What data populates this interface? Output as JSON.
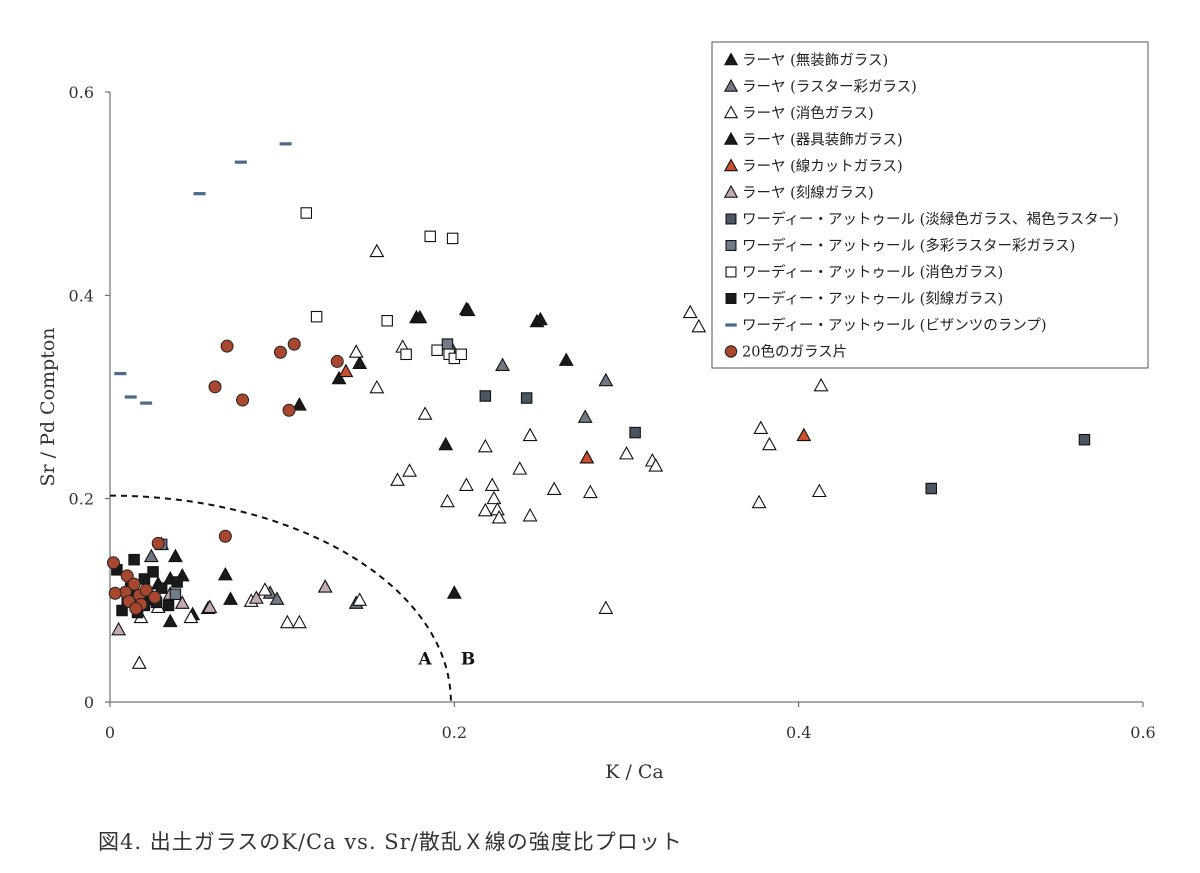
{
  "chart_data": {
    "type": "scatter",
    "xlabel": "K / Ca",
    "ylabel": "Sr / Pd Compton",
    "xlim": [
      0,
      0.6
    ],
    "ylim": [
      0,
      0.6
    ],
    "x_ticks": [
      0,
      0.2,
      0.4,
      0.6
    ],
    "x_tick_labels": [
      "0",
      "0.2",
      "0.4",
      "0.6"
    ],
    "y_ticks": [
      0,
      0.2,
      0.4,
      0.6
    ],
    "y_tick_labels": [
      "0",
      "0.2",
      "0.4",
      "0.6"
    ],
    "grid": false,
    "legend_position": "top-right",
    "annotations": [
      {
        "text": "A",
        "x": 0.183,
        "y": 0.04
      },
      {
        "text": "B",
        "x": 0.208,
        "y": 0.04
      }
    ],
    "boundary_curve": {
      "shape": "quarter-ellipse",
      "x_radius": 0.198,
      "y_radius": 0.203
    },
    "series": [
      {
        "name": "ラーヤ (無装飾ガラス)",
        "marker": "triangle",
        "color": "#1a1a1a",
        "points": [
          [
            0.178,
            0.378
          ],
          [
            0.207,
            0.386
          ],
          [
            0.248,
            0.374
          ],
          [
            0.265,
            0.336
          ],
          [
            0.145,
            0.333
          ],
          [
            0.133,
            0.318
          ],
          [
            0.11,
            0.292
          ],
          [
            0.195,
            0.253
          ],
          [
            0.067,
            0.125
          ],
          [
            0.038,
            0.143
          ],
          [
            0.042,
            0.124
          ],
          [
            0.035,
            0.121
          ],
          [
            0.028,
            0.116
          ],
          [
            0.025,
            0.101
          ],
          [
            0.018,
            0.1
          ],
          [
            0.035,
            0.079
          ],
          [
            0.07,
            0.101
          ],
          [
            0.2,
            0.107
          ],
          [
            0.048,
            0.086
          ],
          [
            0.013,
            0.108
          ]
        ]
      },
      {
        "name": "ラーヤ (ラスター彩ガラス)",
        "marker": "triangle",
        "color": "#6f7a86",
        "points": [
          [
            0.198,
            0.349
          ],
          [
            0.228,
            0.331
          ],
          [
            0.288,
            0.316
          ],
          [
            0.276,
            0.28
          ],
          [
            0.093,
            0.107
          ],
          [
            0.097,
            0.101
          ],
          [
            0.143,
            0.097
          ],
          [
            0.057,
            0.092
          ],
          [
            0.03,
            0.155
          ],
          [
            0.024,
            0.143
          ]
        ]
      },
      {
        "name": "ラーヤ (消色ガラス)",
        "marker": "triangle",
        "color": "#ffffff",
        "points": [
          [
            0.155,
            0.443
          ],
          [
            0.337,
            0.383
          ],
          [
            0.342,
            0.369
          ],
          [
            0.17,
            0.349
          ],
          [
            0.143,
            0.344
          ],
          [
            0.155,
            0.309
          ],
          [
            0.183,
            0.283
          ],
          [
            0.378,
            0.269
          ],
          [
            0.383,
            0.253
          ],
          [
            0.413,
            0.311
          ],
          [
            0.244,
            0.262
          ],
          [
            0.218,
            0.251
          ],
          [
            0.3,
            0.244
          ],
          [
            0.315,
            0.237
          ],
          [
            0.317,
            0.232
          ],
          [
            0.238,
            0.229
          ],
          [
            0.174,
            0.227
          ],
          [
            0.167,
            0.218
          ],
          [
            0.207,
            0.213
          ],
          [
            0.222,
            0.213
          ],
          [
            0.258,
            0.209
          ],
          [
            0.279,
            0.206
          ],
          [
            0.223,
            0.2
          ],
          [
            0.196,
            0.197
          ],
          [
            0.225,
            0.189
          ],
          [
            0.218,
            0.188
          ],
          [
            0.226,
            0.181
          ],
          [
            0.244,
            0.183
          ],
          [
            0.377,
            0.196
          ],
          [
            0.412,
            0.207
          ],
          [
            0.288,
            0.092
          ],
          [
            0.145,
            0.1
          ],
          [
            0.103,
            0.078
          ],
          [
            0.11,
            0.078
          ],
          [
            0.082,
            0.099
          ],
          [
            0.047,
            0.083
          ],
          [
            0.017,
            0.038
          ],
          [
            0.018,
            0.083
          ],
          [
            0.028,
            0.093
          ],
          [
            0.09,
            0.11
          ]
        ]
      },
      {
        "name": "ラーヤ (器具装飾ガラス)",
        "marker": "triangle",
        "color": "#1a1a1a",
        "points": [
          [
            0.25,
            0.376
          ],
          [
            0.208,
            0.385
          ],
          [
            0.18,
            0.378
          ]
        ]
      },
      {
        "name": "ラーヤ (線カットガラス)",
        "marker": "triangle",
        "color": "#c8502e",
        "points": [
          [
            0.137,
            0.325
          ],
          [
            0.277,
            0.24
          ],
          [
            0.403,
            0.262
          ]
        ]
      },
      {
        "name": "ラーヤ (刻線ガラス)",
        "marker": "triangle",
        "color": "#c3a9b5",
        "points": [
          [
            0.125,
            0.113
          ],
          [
            0.005,
            0.071
          ],
          [
            0.085,
            0.102
          ],
          [
            0.035,
            0.106
          ],
          [
            0.022,
            0.108
          ],
          [
            0.042,
            0.097
          ],
          [
            0.058,
            0.093
          ]
        ]
      },
      {
        "name": "ワーディー・アットゥール (淡緑色ガラス、褐色ラスター)",
        "marker": "square",
        "color": "#4a5664",
        "points": [
          [
            0.218,
            0.301
          ],
          [
            0.242,
            0.299
          ],
          [
            0.305,
            0.265
          ],
          [
            0.477,
            0.21
          ],
          [
            0.566,
            0.258
          ]
        ]
      },
      {
        "name": "ワーディー・アットゥール (多彩ラスター彩ガラス)",
        "marker": "square",
        "color": "#6f7d8b",
        "points": [
          [
            0.196,
            0.352
          ],
          [
            0.03,
            0.155
          ],
          [
            0.038,
            0.106
          ]
        ]
      },
      {
        "name": "ワーディー・アットゥール (消色ガラス)",
        "marker": "square",
        "color": "#ffffff",
        "points": [
          [
            0.114,
            0.481
          ],
          [
            0.186,
            0.458
          ],
          [
            0.199,
            0.456
          ],
          [
            0.12,
            0.379
          ],
          [
            0.161,
            0.375
          ],
          [
            0.172,
            0.342
          ],
          [
            0.19,
            0.346
          ],
          [
            0.197,
            0.342
          ],
          [
            0.2,
            0.338
          ],
          [
            0.204,
            0.342
          ]
        ]
      },
      {
        "name": "ワーディー・アットゥール (刻線ガラス)",
        "marker": "square",
        "color": "#1a1a1a",
        "points": [
          [
            0.004,
            0.13
          ],
          [
            0.014,
            0.14
          ],
          [
            0.02,
            0.121
          ],
          [
            0.025,
            0.128
          ],
          [
            0.01,
            0.1
          ],
          [
            0.016,
            0.088
          ],
          [
            0.022,
            0.104
          ],
          [
            0.03,
            0.112
          ],
          [
            0.034,
            0.095
          ],
          [
            0.007,
            0.09
          ],
          [
            0.027,
            0.098
          ],
          [
            0.039,
            0.118
          ],
          [
            0.012,
            0.112
          ],
          [
            0.02,
            0.095
          ]
        ]
      },
      {
        "name": "ワーディー・アットゥール (ビザンツのランプ)",
        "marker": "dash",
        "color": "#4a6a8a",
        "points": [
          [
            0.102,
            0.549
          ],
          [
            0.076,
            0.531
          ],
          [
            0.052,
            0.5
          ],
          [
            0.006,
            0.323
          ],
          [
            0.012,
            0.3
          ],
          [
            0.021,
            0.294
          ]
        ]
      },
      {
        "name": "20色のガラス片",
        "marker": "circle",
        "color": "#a8472e",
        "points": [
          [
            0.068,
            0.35
          ],
          [
            0.107,
            0.352
          ],
          [
            0.099,
            0.344
          ],
          [
            0.132,
            0.335
          ],
          [
            0.061,
            0.31
          ],
          [
            0.077,
            0.297
          ],
          [
            0.104,
            0.287
          ],
          [
            0.067,
            0.163
          ],
          [
            0.028,
            0.156
          ],
          [
            0.002,
            0.137
          ],
          [
            0.01,
            0.124
          ],
          [
            0.014,
            0.116
          ],
          [
            0.009,
            0.108
          ],
          [
            0.003,
            0.107
          ],
          [
            0.017,
            0.105
          ],
          [
            0.021,
            0.11
          ],
          [
            0.011,
            0.099
          ],
          [
            0.018,
            0.096
          ],
          [
            0.026,
            0.103
          ],
          [
            0.015,
            0.092
          ]
        ]
      }
    ]
  },
  "caption": "図4.  出土ガラスのK/Ca vs. Sr/散乱Ｘ線の強度比プロット"
}
